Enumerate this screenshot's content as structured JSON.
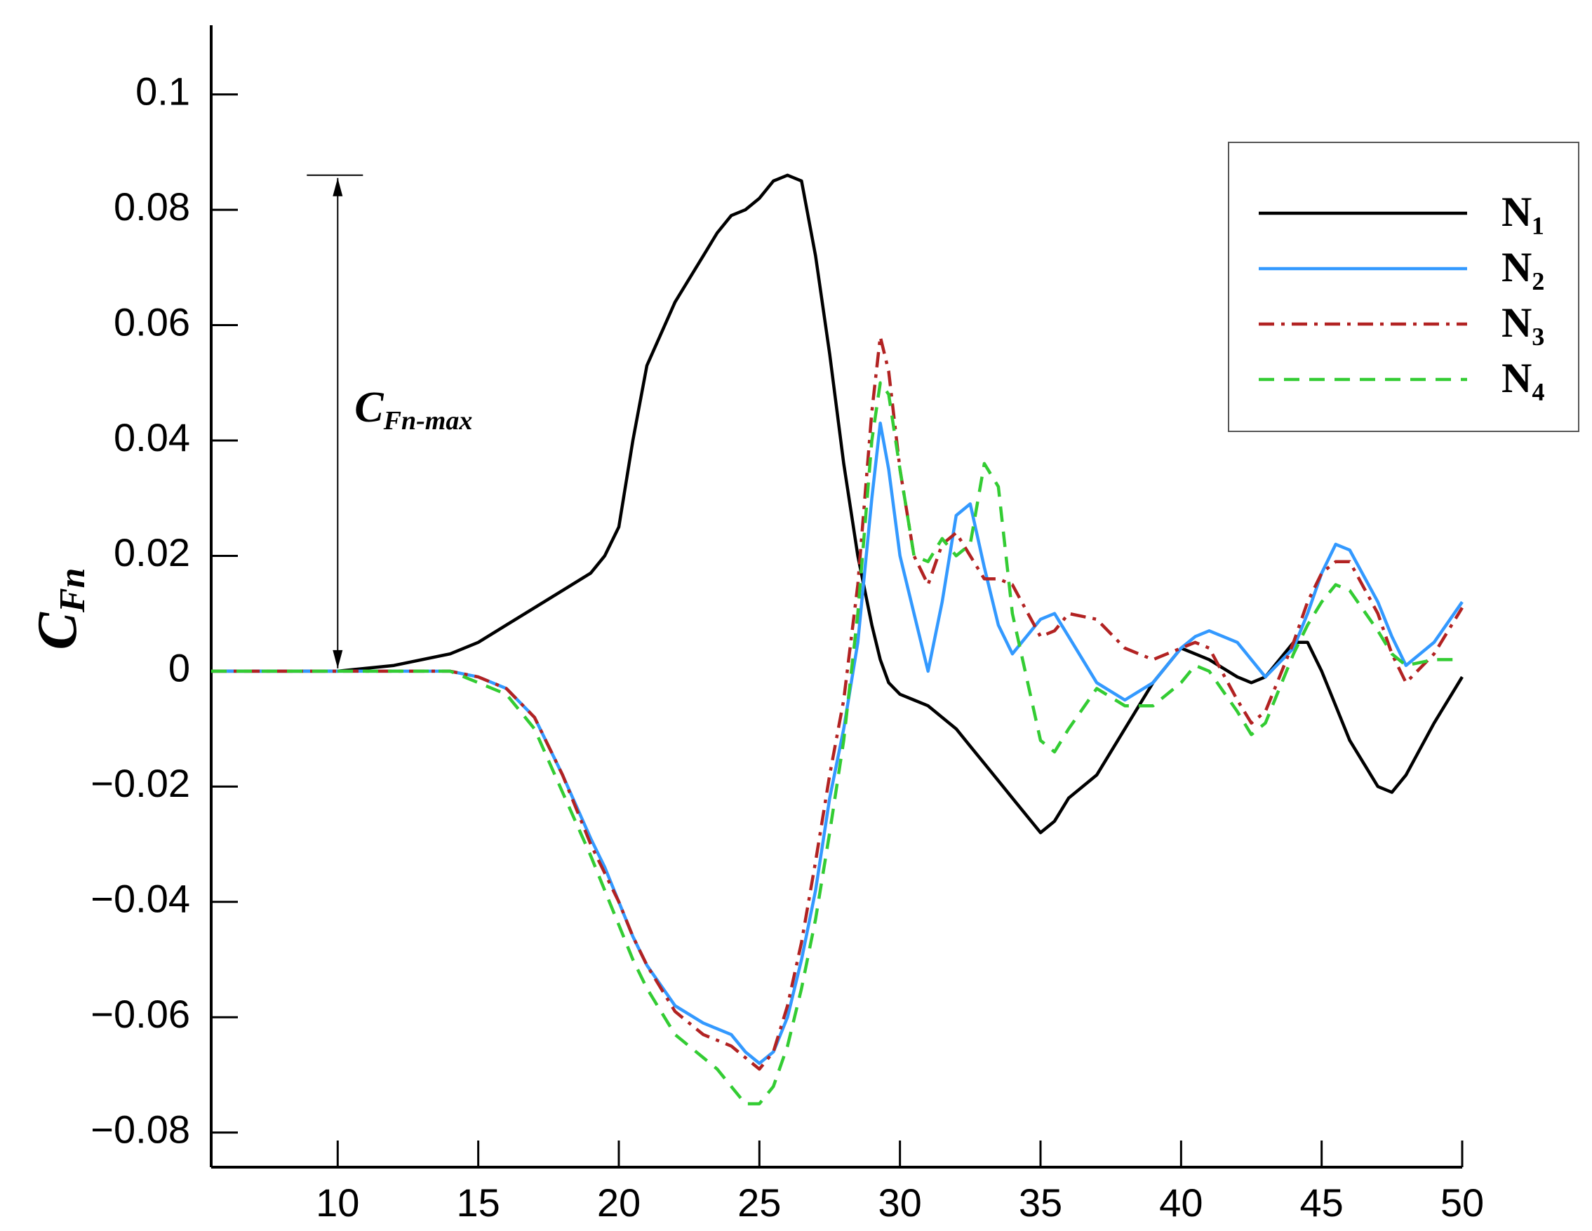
{
  "chart_data": {
    "type": "line",
    "y_label": {
      "main": "C",
      "sub": "Fn"
    },
    "annotation": {
      "main": "C",
      "sub": "Fn-max",
      "x": 10,
      "y_top": 0.086,
      "y_bottom": 0
    },
    "x": [
      5.5,
      10,
      12,
      14,
      15,
      16,
      17,
      18,
      19,
      19.5,
      20,
      20.5,
      21,
      22,
      23,
      23.5,
      24,
      24.5,
      25,
      25.5,
      26,
      26.5,
      27,
      27.5,
      28,
      28.5,
      29,
      29.3,
      29.6,
      30,
      30.5,
      31,
      31.5,
      32,
      32.5,
      33,
      33.5,
      34,
      35,
      35.5,
      36,
      37,
      38,
      39,
      40,
      40.5,
      41,
      42,
      42.5,
      43,
      44,
      44.5,
      45,
      45.5,
      46,
      47,
      47.5,
      48,
      49,
      50
    ],
    "series": [
      {
        "name": "N₁",
        "color": "#000000",
        "style": "solid",
        "values": [
          0,
          0,
          0.001,
          0.003,
          0.005,
          0.008,
          0.011,
          0.014,
          0.017,
          0.02,
          0.025,
          0.04,
          0.053,
          0.064,
          0.072,
          0.076,
          0.079,
          0.08,
          0.082,
          0.085,
          0.086,
          0.085,
          0.072,
          0.055,
          0.036,
          0.02,
          0.008,
          0.002,
          -0.002,
          -0.004,
          -0.005,
          -0.006,
          -0.008,
          -0.01,
          -0.013,
          -0.016,
          -0.019,
          -0.022,
          -0.028,
          -0.026,
          -0.022,
          -0.018,
          -0.01,
          -0.002,
          0.004,
          0.003,
          0.002,
          -0.001,
          -0.002,
          -0.001,
          0.005,
          0.005,
          0.0,
          -0.006,
          -0.012,
          -0.02,
          -0.021,
          -0.018,
          -0.009,
          -0.001
        ]
      },
      {
        "name": "N₂",
        "color": "#3399ff",
        "style": "solid",
        "values": [
          0,
          0,
          0,
          0,
          -0.001,
          -0.003,
          -0.008,
          -0.018,
          -0.029,
          -0.034,
          -0.04,
          -0.046,
          -0.051,
          -0.058,
          -0.061,
          -0.062,
          -0.063,
          -0.066,
          -0.068,
          -0.066,
          -0.06,
          -0.05,
          -0.038,
          -0.022,
          -0.01,
          0.005,
          0.03,
          0.043,
          0.035,
          0.02,
          0.01,
          0.0,
          0.012,
          0.027,
          0.029,
          0.018,
          0.008,
          0.003,
          0.009,
          0.01,
          0.006,
          -0.002,
          -0.005,
          -0.002,
          0.004,
          0.006,
          0.007,
          0.005,
          0.002,
          -0.001,
          0.004,
          0.01,
          0.017,
          0.022,
          0.021,
          0.012,
          0.006,
          0.001,
          0.005,
          0.012
        ]
      },
      {
        "name": "N₃",
        "color": "#b22222",
        "style": "dashdot",
        "values": [
          0,
          0,
          0,
          0,
          -0.001,
          -0.003,
          -0.008,
          -0.018,
          -0.03,
          -0.035,
          -0.04,
          -0.046,
          -0.051,
          -0.059,
          -0.063,
          -0.064,
          -0.065,
          -0.067,
          -0.069,
          -0.066,
          -0.058,
          -0.047,
          -0.033,
          -0.018,
          -0.005,
          0.015,
          0.045,
          0.058,
          0.052,
          0.035,
          0.02,
          0.015,
          0.022,
          0.024,
          0.02,
          0.016,
          0.016,
          0.015,
          0.006,
          0.007,
          0.01,
          0.009,
          0.004,
          0.002,
          0.004,
          0.005,
          0.004,
          -0.005,
          -0.009,
          -0.007,
          0.005,
          0.012,
          0.017,
          0.019,
          0.019,
          0.01,
          0.003,
          -0.002,
          0.003,
          0.011
        ]
      },
      {
        "name": "N₄",
        "color": "#33cc33",
        "style": "dashed",
        "values": [
          0,
          0,
          0,
          0,
          -0.002,
          -0.004,
          -0.01,
          -0.021,
          -0.032,
          -0.038,
          -0.044,
          -0.05,
          -0.055,
          -0.063,
          -0.067,
          -0.069,
          -0.072,
          -0.075,
          -0.075,
          -0.072,
          -0.065,
          -0.055,
          -0.043,
          -0.028,
          -0.012,
          0.01,
          0.04,
          0.05,
          0.048,
          0.035,
          0.02,
          0.019,
          0.023,
          0.02,
          0.022,
          0.036,
          0.032,
          0.01,
          -0.012,
          -0.014,
          -0.01,
          -0.003,
          -0.006,
          -0.006,
          -0.002,
          0.001,
          0.0,
          -0.007,
          -0.011,
          -0.009,
          0.003,
          0.008,
          0.012,
          0.015,
          0.014,
          0.007,
          0.003,
          0.001,
          0.002,
          0.002
        ]
      }
    ],
    "xlim": [
      5.5,
      50
    ],
    "xticks": [
      10,
      15,
      20,
      25,
      30,
      35,
      40,
      45,
      50
    ],
    "ylim": [
      -0.086,
      0.112
    ],
    "yticks": [
      {
        "value": -0.08,
        "label": "−0.08"
      },
      {
        "value": -0.06,
        "label": "−0.06"
      },
      {
        "value": -0.04,
        "label": "−0.04"
      },
      {
        "value": -0.02,
        "label": "−0.02"
      },
      0,
      0.02,
      0.04,
      0.06,
      0.08,
      0.1
    ],
    "legend": "upper right",
    "grid": false
  }
}
